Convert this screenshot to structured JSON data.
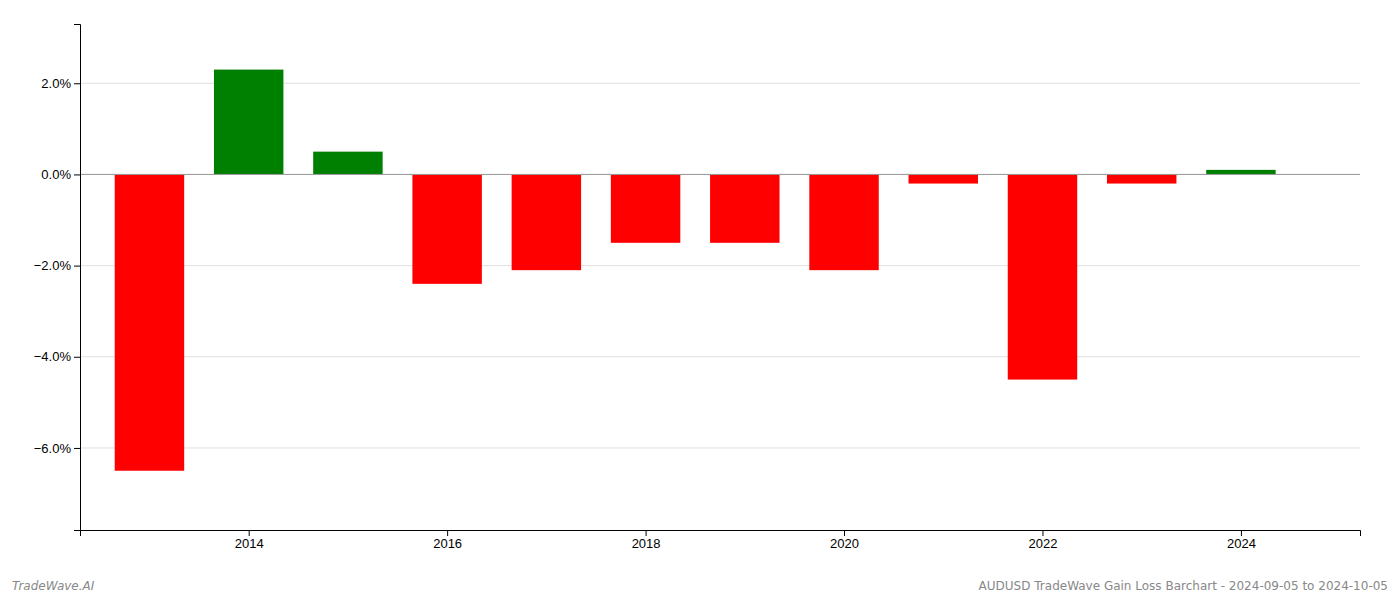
{
  "chart_data": {
    "type": "bar",
    "x": [
      2013,
      2014,
      2015,
      2016,
      2017,
      2018,
      2019,
      2020,
      2021,
      2022,
      2023,
      2024
    ],
    "values": [
      -0.065,
      0.023,
      0.005,
      -0.024,
      -0.021,
      -0.015,
      -0.015,
      -0.021,
      -0.002,
      -0.045,
      -0.002,
      0.001
    ],
    "colors": [
      "#ff0000",
      "#008000",
      "#008000",
      "#ff0000",
      "#ff0000",
      "#ff0000",
      "#ff0000",
      "#ff0000",
      "#ff0000",
      "#ff0000",
      "#ff0000",
      "#008000"
    ],
    "xlim": [
      2012.3,
      2025.2
    ],
    "xticks": [
      2014,
      2016,
      2018,
      2020,
      2022,
      2024
    ],
    "ylim": [
      -0.078,
      0.033
    ],
    "yticks": [
      {
        "value": -0.06,
        "label": "−6.0%"
      },
      {
        "value": -0.04,
        "label": "−4.0%"
      },
      {
        "value": -0.02,
        "label": "−2.0%"
      },
      {
        "value": 0.0,
        "label": "0.0%"
      },
      {
        "value": 0.02,
        "label": "2.0%"
      }
    ],
    "grid": true,
    "annotations": [
      {
        "text": "TradeWave.AI"
      },
      {
        "text": "AUDUSD TradeWave Gain Loss Barchart - 2024-09-05 to 2024-10-05"
      }
    ]
  }
}
